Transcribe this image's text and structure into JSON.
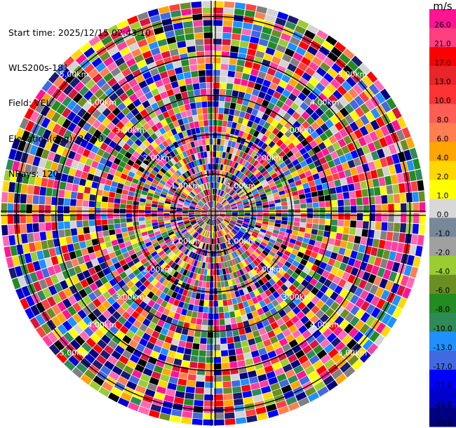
{
  "header": {
    "start_time": "Start time: 2025/12/15 02:43:10",
    "instrument": "WLS200s-181",
    "field": "Field: VEL",
    "elevation": "Elevation(deg): 35.00",
    "nrays": "NRays: 120"
  },
  "colorbar": {
    "unit": "m/s",
    "ticks": [
      "26.0",
      "21.0",
      "17.0",
      "13.0",
      "10.0",
      "8.0",
      "6.0",
      "4.0",
      "2.0",
      "1.0",
      "0.0",
      "-1.0",
      "-2.0",
      "-4.0",
      "-6.0",
      "-8.0",
      "-10.0",
      "-13.0",
      "-17.0",
      "-21.0",
      "-26.0",
      "-30.0"
    ],
    "colors": [
      "#ff1493",
      "#ff3f7f",
      "#ff0000",
      "#e8262a",
      "#ff3333",
      "#ff5f55",
      "#ff7f50",
      "#ffa500",
      "#ffd700",
      "#ffff00",
      "#d8d8d8",
      "#778899",
      "#a0a0a0",
      "#9acd32",
      "#6b8e23",
      "#228b22",
      "#2e8b57",
      "#1e90ff",
      "#4169e1",
      "#0000ff",
      "#0000cd",
      "#000080",
      "#191970"
    ]
  },
  "chart_data": {
    "type": "heatmap",
    "projection": "polar PPI",
    "field": "VEL",
    "units": "m/s",
    "nrays": 120,
    "elevation_deg": 35.0,
    "value_range": [
      -30.0,
      26.0
    ],
    "range_rings": [
      {
        "label_ne": "1.00km",
        "label_nw": "1.00km",
        "label_se": "1.00km",
        "label_sw": "1.00km"
      },
      {
        "label_ne": "2.00km",
        "label_nw": "2.00km",
        "label_se": "2.00km",
        "label_sw": "2.00km"
      },
      {
        "label_ne": "3.00km",
        "label_nw": "3.00km",
        "label_se": "3.00km",
        "label_sw": "3.00km"
      },
      {
        "label_ne": "4.00km",
        "label_nw": "4.00km",
        "label_se": "4.00km",
        "label_sw": "4.00km"
      },
      {
        "label_ne": "5.00km",
        "label_nw": "5.00km",
        "label_se": "5.00km",
        "label_sw": "5.00km"
      }
    ],
    "grid": true
  }
}
